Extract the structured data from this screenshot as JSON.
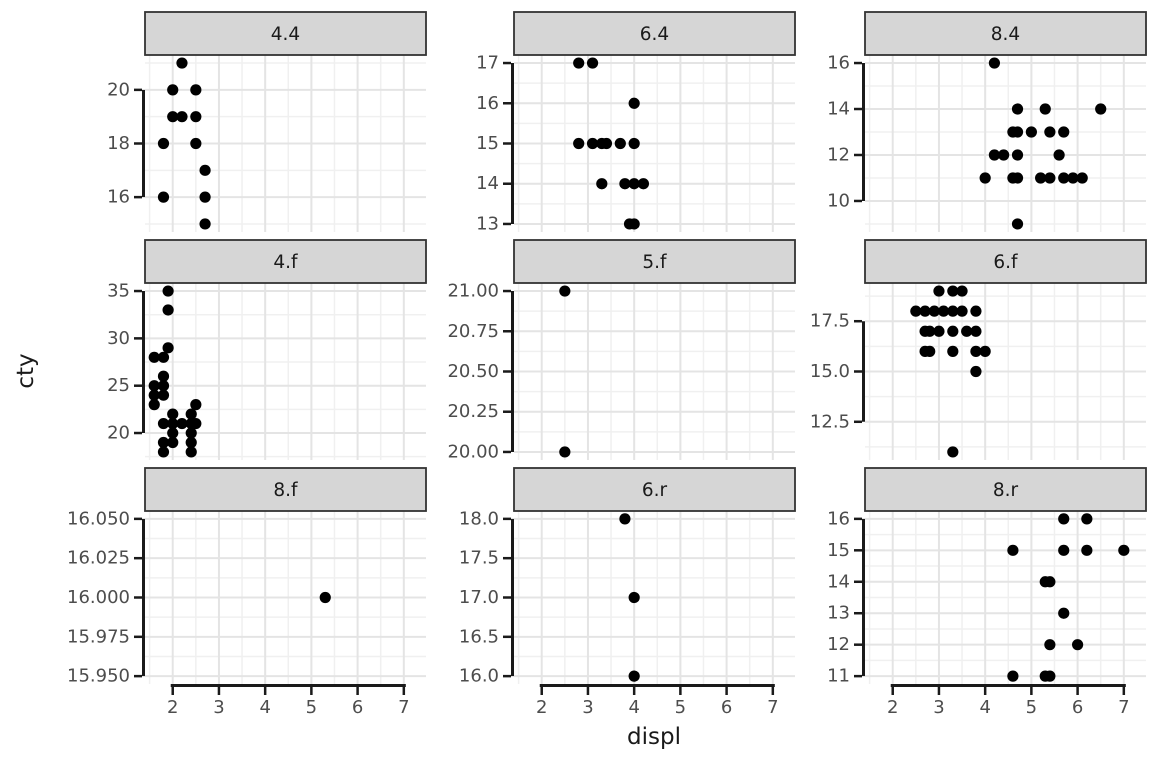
{
  "colors": {
    "page_bg": "#ffffff",
    "panel_bg": "#ffffff",
    "grid_major": "#e4e4e4",
    "grid_minor": "#f0f0f0",
    "point": "#000000",
    "axis_line": "#1a1a1a",
    "tick_label": "#4d4d4d",
    "strip_bg": "#d6d6d6",
    "strip_border": "#333333",
    "strip_text": "#1a1a1a",
    "title_text": "#1a1a1a"
  },
  "chart_data": {
    "type": "scatter",
    "y_label": "cty",
    "facet_variable": "cyl.drv",
    "legend": "none",
    "grid": "on",
    "x": {
      "label": "displ",
      "range": [
        1.4,
        7.48
      ],
      "ticks": [
        {
          "v": 2,
          "t": "2"
        },
        {
          "v": 3,
          "t": "3"
        },
        {
          "v": 4,
          "t": "4"
        },
        {
          "v": 5,
          "t": "5"
        },
        {
          "v": 6,
          "t": "6"
        },
        {
          "v": 7,
          "t": "7"
        }
      ],
      "minor": [
        1.5,
        2.5,
        3.5,
        4.5,
        5.5,
        6.5
      ]
    },
    "panels": [
      {
        "label": "4.4",
        "y_range": [
          14.7,
          21.3
        ],
        "y_ticks": [
          {
            "v": 20,
            "t": "20"
          },
          {
            "v": 18,
            "t": "18"
          },
          {
            "v": 16,
            "t": "16"
          }
        ],
        "points": [
          [
            1.8,
            16
          ],
          [
            1.8,
            18
          ],
          [
            2.0,
            19
          ],
          [
            2.0,
            20
          ],
          [
            2.2,
            19
          ],
          [
            2.2,
            21
          ],
          [
            2.5,
            18
          ],
          [
            2.5,
            19
          ],
          [
            2.5,
            20
          ],
          [
            2.7,
            15
          ],
          [
            2.7,
            16
          ],
          [
            2.7,
            17
          ]
        ]
      },
      {
        "label": "6.4",
        "y_range": [
          12.8,
          17.2
        ],
        "y_ticks": [
          {
            "v": 17,
            "t": "17"
          },
          {
            "v": 16,
            "t": "16"
          },
          {
            "v": 15,
            "t": "15"
          },
          {
            "v": 14,
            "t": "14"
          },
          {
            "v": 13,
            "t": "13"
          }
        ],
        "points": [
          [
            2.8,
            15
          ],
          [
            2.8,
            17
          ],
          [
            3.1,
            15
          ],
          [
            3.1,
            17
          ],
          [
            3.3,
            14
          ],
          [
            3.3,
            15
          ],
          [
            3.4,
            15
          ],
          [
            3.7,
            15
          ],
          [
            3.8,
            14
          ],
          [
            3.9,
            13
          ],
          [
            4.0,
            13
          ],
          [
            4.0,
            14
          ],
          [
            4.0,
            15
          ],
          [
            4.0,
            16
          ],
          [
            4.2,
            14
          ]
        ]
      },
      {
        "label": "8.4",
        "y_range": [
          8.65,
          16.35
        ],
        "y_ticks": [
          {
            "v": 16,
            "t": "16"
          },
          {
            "v": 14,
            "t": "14"
          },
          {
            "v": 12,
            "t": "12"
          },
          {
            "v": 10,
            "t": "10"
          }
        ],
        "points": [
          [
            4.0,
            11
          ],
          [
            4.2,
            12
          ],
          [
            4.2,
            16
          ],
          [
            4.4,
            12
          ],
          [
            4.6,
            11
          ],
          [
            4.6,
            13
          ],
          [
            4.7,
            9
          ],
          [
            4.7,
            11
          ],
          [
            4.7,
            12
          ],
          [
            4.7,
            13
          ],
          [
            4.7,
            14
          ],
          [
            5.0,
            13
          ],
          [
            5.2,
            11
          ],
          [
            5.3,
            14
          ],
          [
            5.4,
            11
          ],
          [
            5.4,
            13
          ],
          [
            5.6,
            12
          ],
          [
            5.7,
            11
          ],
          [
            5.7,
            13
          ],
          [
            5.9,
            11
          ],
          [
            6.1,
            11
          ],
          [
            6.5,
            14
          ]
        ]
      },
      {
        "label": "4.f",
        "y_range": [
          17.15,
          35.85
        ],
        "y_ticks": [
          {
            "v": 35,
            "t": "35"
          },
          {
            "v": 30,
            "t": "30"
          },
          {
            "v": 25,
            "t": "25"
          },
          {
            "v": 20,
            "t": "20"
          }
        ],
        "points": [
          [
            1.6,
            23
          ],
          [
            1.6,
            24
          ],
          [
            1.6,
            25
          ],
          [
            1.6,
            28
          ],
          [
            1.8,
            18
          ],
          [
            1.8,
            19
          ],
          [
            1.8,
            21
          ],
          [
            1.8,
            24
          ],
          [
            1.8,
            25
          ],
          [
            1.8,
            26
          ],
          [
            1.8,
            28
          ],
          [
            1.9,
            29
          ],
          [
            1.9,
            33
          ],
          [
            1.9,
            35
          ],
          [
            2.0,
            19
          ],
          [
            2.0,
            20
          ],
          [
            2.0,
            21
          ],
          [
            2.0,
            22
          ],
          [
            2.2,
            21
          ],
          [
            2.4,
            18
          ],
          [
            2.4,
            19
          ],
          [
            2.4,
            20
          ],
          [
            2.4,
            21
          ],
          [
            2.4,
            22
          ],
          [
            2.5,
            21
          ],
          [
            2.5,
            23
          ]
        ]
      },
      {
        "label": "5.f",
        "y_range": [
          19.95,
          21.05
        ],
        "y_ticks": [
          {
            "v": 21.0,
            "t": "21.00"
          },
          {
            "v": 20.75,
            "t": "20.75"
          },
          {
            "v": 20.5,
            "t": "20.50"
          },
          {
            "v": 20.25,
            "t": "20.25"
          },
          {
            "v": 20.0,
            "t": "20.00"
          }
        ],
        "points": [
          [
            2.5,
            20
          ],
          [
            2.5,
            21
          ]
        ]
      },
      {
        "label": "6.f",
        "y_range": [
          10.6,
          19.4
        ],
        "y_ticks": [
          {
            "v": 17.5,
            "t": "17.5"
          },
          {
            "v": 15.0,
            "t": "15.0"
          },
          {
            "v": 12.5,
            "t": "12.5"
          }
        ],
        "points": [
          [
            2.5,
            18
          ],
          [
            2.7,
            16
          ],
          [
            2.7,
            17
          ],
          [
            2.7,
            18
          ],
          [
            2.8,
            16
          ],
          [
            2.8,
            17
          ],
          [
            2.9,
            18
          ],
          [
            3.0,
            17
          ],
          [
            3.0,
            19
          ],
          [
            3.1,
            18
          ],
          [
            3.3,
            11
          ],
          [
            3.3,
            16
          ],
          [
            3.3,
            17
          ],
          [
            3.3,
            18
          ],
          [
            3.3,
            19
          ],
          [
            3.5,
            18
          ],
          [
            3.5,
            19
          ],
          [
            3.6,
            17
          ],
          [
            3.8,
            15
          ],
          [
            3.8,
            16
          ],
          [
            3.8,
            17
          ],
          [
            3.8,
            18
          ],
          [
            4.0,
            16
          ]
        ]
      },
      {
        "label": "8.f",
        "y_range": [
          15.945,
          16.055
        ],
        "y_ticks": [
          {
            "v": 16.05,
            "t": "16.050"
          },
          {
            "v": 16.025,
            "t": "16.025"
          },
          {
            "v": 16.0,
            "t": "16.000"
          },
          {
            "v": 15.975,
            "t": "15.975"
          },
          {
            "v": 15.95,
            "t": "15.950"
          }
        ],
        "points": [
          [
            5.3,
            16
          ]
        ]
      },
      {
        "label": "6.r",
        "y_range": [
          15.9,
          18.1
        ],
        "y_ticks": [
          {
            "v": 18.0,
            "t": "18.0"
          },
          {
            "v": 17.5,
            "t": "17.5"
          },
          {
            "v": 17.0,
            "t": "17.0"
          },
          {
            "v": 16.5,
            "t": "16.5"
          },
          {
            "v": 16.0,
            "t": "16.0"
          }
        ],
        "points": [
          [
            3.8,
            18
          ],
          [
            4.0,
            17
          ],
          [
            4.0,
            16
          ]
        ]
      },
      {
        "label": "8.r",
        "y_range": [
          10.75,
          16.25
        ],
        "y_ticks": [
          {
            "v": 16,
            "t": "16"
          },
          {
            "v": 15,
            "t": "15"
          },
          {
            "v": 14,
            "t": "14"
          },
          {
            "v": 13,
            "t": "13"
          },
          {
            "v": 12,
            "t": "12"
          },
          {
            "v": 11,
            "t": "11"
          }
        ],
        "points": [
          [
            4.6,
            11
          ],
          [
            4.6,
            15
          ],
          [
            5.3,
            11
          ],
          [
            5.3,
            14
          ],
          [
            5.4,
            11
          ],
          [
            5.4,
            12
          ],
          [
            5.4,
            14
          ],
          [
            5.7,
            13
          ],
          [
            5.7,
            15
          ],
          [
            5.7,
            16
          ],
          [
            6.0,
            12
          ],
          [
            6.2,
            15
          ],
          [
            6.2,
            16
          ],
          [
            7.0,
            15
          ]
        ]
      }
    ]
  }
}
